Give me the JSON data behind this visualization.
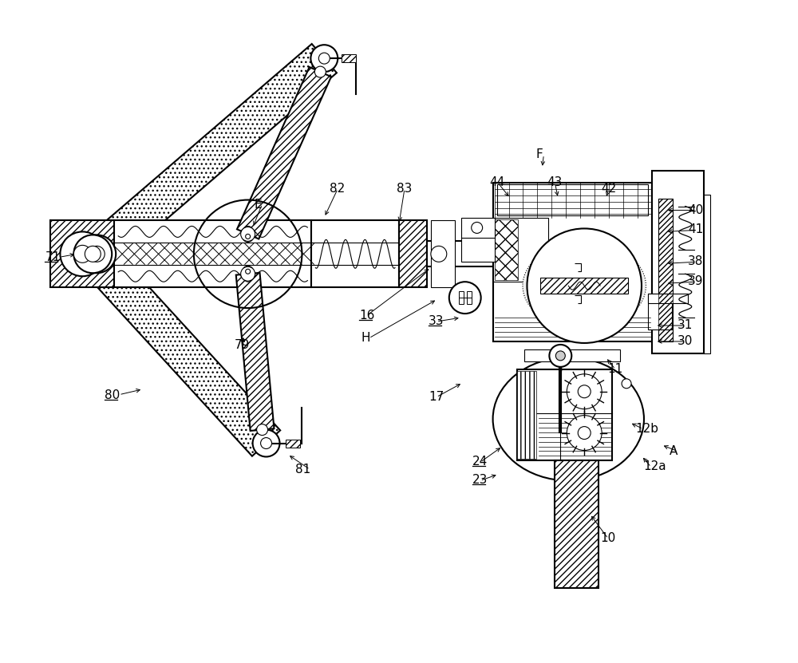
{
  "bg_color": "#ffffff",
  "line_color": "#000000",
  "fig_width": 10.0,
  "fig_height": 8.31,
  "lw_main": 1.5,
  "lw_thin": 0.8,
  "labels": [
    [
      "71",
      55,
      315,
      true
    ],
    [
      "E",
      318,
      248,
      false
    ],
    [
      "82",
      413,
      228,
      false
    ],
    [
      "83",
      497,
      228,
      false
    ],
    [
      "79",
      293,
      425,
      false
    ],
    [
      "80",
      130,
      488,
      true
    ],
    [
      "81",
      370,
      582,
      false
    ],
    [
      "16",
      450,
      388,
      true
    ],
    [
      "H",
      452,
      416,
      false
    ],
    [
      "17",
      537,
      490,
      false
    ],
    [
      "33",
      537,
      395,
      true
    ],
    [
      "44",
      614,
      220,
      false
    ],
    [
      "F",
      672,
      185,
      false
    ],
    [
      "43",
      686,
      220,
      false
    ],
    [
      "42",
      754,
      228,
      false
    ],
    [
      "40",
      863,
      255,
      false
    ],
    [
      "41",
      863,
      280,
      false
    ],
    [
      "38",
      863,
      320,
      false
    ],
    [
      "39",
      863,
      345,
      false
    ],
    [
      "31",
      850,
      400,
      false
    ],
    [
      "30",
      850,
      420,
      false
    ],
    [
      "11",
      762,
      455,
      false
    ],
    [
      "24",
      592,
      572,
      true
    ],
    [
      "23",
      592,
      595,
      true
    ],
    [
      "12b",
      797,
      530,
      false
    ],
    [
      "A",
      840,
      558,
      false
    ],
    [
      "12a",
      807,
      578,
      false
    ],
    [
      "10",
      753,
      668,
      false
    ]
  ]
}
